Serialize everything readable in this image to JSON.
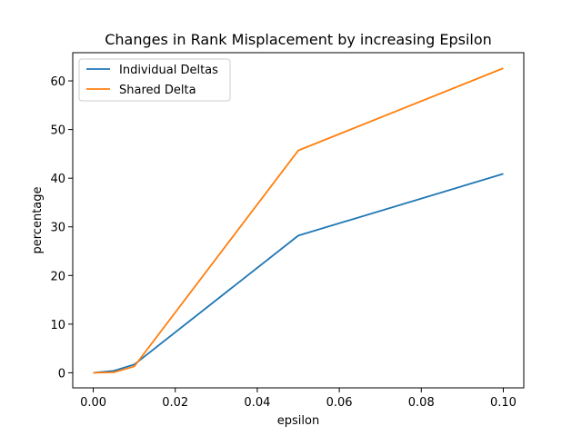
{
  "chart_data": {
    "type": "line",
    "title": "Changes in Rank Misplacement by increasing Epsilon",
    "xlabel": "epsilon",
    "ylabel": "percentage",
    "xlim": [
      -0.005,
      0.105
    ],
    "ylim": [
      -3.1,
      65.8
    ],
    "xticks": [
      "0.00",
      "0.02",
      "0.04",
      "0.06",
      "0.08",
      "0.10"
    ],
    "yticks": [
      "0",
      "10",
      "20",
      "30",
      "40",
      "50",
      "60"
    ],
    "grid": false,
    "legend_position": "top-left",
    "x": [
      0.0,
      0.005,
      0.01,
      0.05,
      0.1
    ],
    "series": [
      {
        "name": "Individual Deltas",
        "color": "#1f77b4",
        "values": [
          0.0,
          0.4,
          1.7,
          28.2,
          40.9
        ]
      },
      {
        "name": "Shared Delta",
        "color": "#ff7f0e",
        "values": [
          0.0,
          0.1,
          1.3,
          45.7,
          62.6
        ]
      }
    ]
  }
}
